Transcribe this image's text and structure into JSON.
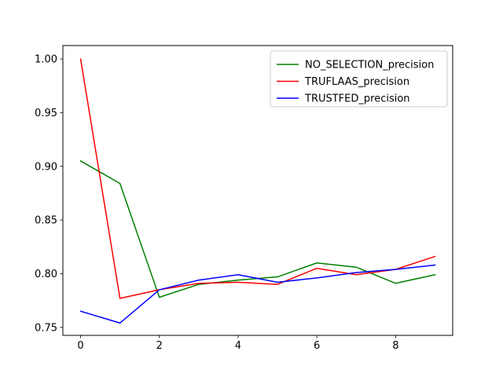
{
  "chart_data": {
    "type": "line",
    "title": "",
    "xlabel": "",
    "ylabel": "",
    "x": [
      0,
      1,
      2,
      3,
      4,
      5,
      6,
      7,
      8,
      9
    ],
    "xlim": [
      -0.45,
      9.45
    ],
    "ylim": [
      0.7425,
      1.0125
    ],
    "xticks": [
      0,
      2,
      4,
      6,
      8
    ],
    "xtick_labels": [
      "0",
      "2",
      "4",
      "6",
      "8"
    ],
    "yticks": [
      0.75,
      0.8,
      0.85,
      0.9,
      0.95,
      1.0
    ],
    "ytick_labels": [
      "0.75",
      "0.80",
      "0.85",
      "0.90",
      "0.95",
      "1.00"
    ],
    "grid": false,
    "legend_position": "top-right",
    "series": [
      {
        "name": "NO_SELECTION_precision",
        "color": "#008000",
        "values": [
          0.905,
          0.884,
          0.778,
          0.79,
          0.794,
          0.797,
          0.81,
          0.806,
          0.791,
          0.799
        ]
      },
      {
        "name": "TRUFLAAS_precision",
        "color": "#ff0000",
        "values": [
          1.0,
          0.777,
          0.785,
          0.791,
          0.792,
          0.79,
          0.805,
          0.799,
          0.804,
          0.816
        ]
      },
      {
        "name": "TRUSTFED_precision",
        "color": "#0000ff",
        "values": [
          0.765,
          0.754,
          0.785,
          0.794,
          0.799,
          0.792,
          0.796,
          0.801,
          0.804,
          0.808
        ]
      }
    ]
  }
}
